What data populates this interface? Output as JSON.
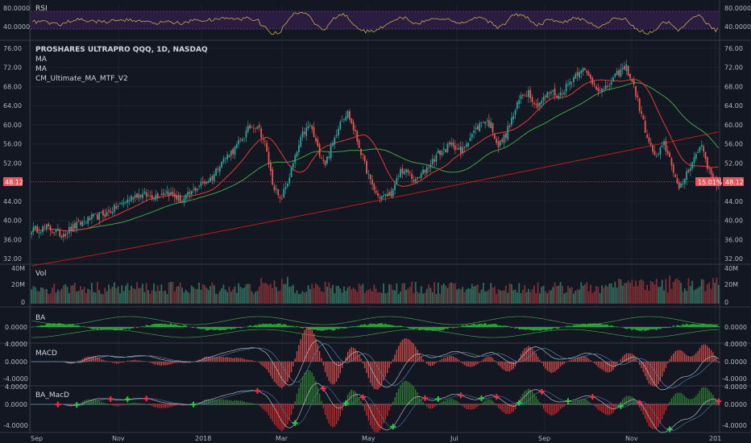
{
  "chart_data": {
    "type": "candlestick",
    "symbol_line": "PROSHARES ULTRAPRO QQQ, 1D, NASDAQ",
    "overlay_labels": [
      "MA",
      "MA",
      "CM_Ultimate_MA_MTF_V2"
    ],
    "last_price_label": "48.12",
    "change_badge": "15.01%",
    "price_axis": {
      "ticks": [
        "76.00",
        "72.00",
        "68.00",
        "64.00",
        "60.00",
        "56.00",
        "52.00",
        "48.00",
        "44.00",
        "40.00",
        "36.00",
        "32.00"
      ],
      "ylim": [
        31,
        77
      ]
    },
    "x_axis_labels": [
      "Sep",
      "Nov",
      "2018",
      "Mar",
      "May",
      "Jul",
      "Sep",
      "Nov",
      "201"
    ],
    "price_anchors": [
      [
        0,
        38
      ],
      [
        8,
        38.5
      ],
      [
        16,
        37
      ],
      [
        24,
        39
      ],
      [
        32,
        40.5
      ],
      [
        40,
        41.5
      ],
      [
        48,
        43.5
      ],
      [
        56,
        45.5
      ],
      [
        64,
        45
      ],
      [
        72,
        46
      ],
      [
        80,
        44
      ],
      [
        88,
        47
      ],
      [
        96,
        49
      ],
      [
        100,
        52
      ],
      [
        108,
        55
      ],
      [
        116,
        59.5
      ],
      [
        120,
        60
      ],
      [
        124,
        56
      ],
      [
        128,
        48
      ],
      [
        132,
        44
      ],
      [
        136,
        48
      ],
      [
        140,
        53
      ],
      [
        144,
        58
      ],
      [
        148,
        60
      ],
      [
        152,
        55
      ],
      [
        156,
        52
      ],
      [
        160,
        56
      ],
      [
        164,
        61
      ],
      [
        168,
        62.5
      ],
      [
        172,
        58
      ],
      [
        176,
        53
      ],
      [
        180,
        48
      ],
      [
        184,
        45
      ],
      [
        188,
        45
      ],
      [
        192,
        46
      ],
      [
        196,
        50.5
      ],
      [
        200,
        50
      ],
      [
        204,
        48
      ],
      [
        208,
        50
      ],
      [
        212,
        52
      ],
      [
        216,
        54
      ],
      [
        220,
        55
      ],
      [
        224,
        56
      ],
      [
        228,
        54
      ],
      [
        232,
        57
      ],
      [
        236,
        59
      ],
      [
        240,
        61
      ],
      [
        244,
        60
      ],
      [
        248,
        55.5
      ],
      [
        252,
        58
      ],
      [
        256,
        62
      ],
      [
        260,
        66
      ],
      [
        264,
        67
      ],
      [
        268,
        64
      ],
      [
        272,
        65.5
      ],
      [
        276,
        67
      ],
      [
        280,
        66
      ],
      [
        284,
        68
      ],
      [
        288,
        70
      ],
      [
        292,
        72
      ],
      [
        296,
        70
      ],
      [
        300,
        68
      ],
      [
        304,
        67
      ],
      [
        308,
        69
      ],
      [
        312,
        71
      ],
      [
        316,
        72
      ],
      [
        320,
        68
      ],
      [
        324,
        62
      ],
      [
        328,
        56
      ],
      [
        332,
        53
      ],
      [
        336,
        56
      ],
      [
        340,
        52
      ],
      [
        344,
        46
      ],
      [
        348,
        50
      ],
      [
        352,
        53
      ],
      [
        356,
        56
      ],
      [
        360,
        50
      ],
      [
        364,
        48
      ]
    ],
    "rsi": {
      "label": "RSI",
      "ticks": [
        "80.0000",
        "40.0000"
      ],
      "band": [
        40,
        80
      ]
    },
    "volume": {
      "label": "Vol",
      "ticks": [
        "40M",
        "20M",
        "0"
      ]
    },
    "ba": {
      "label": "BA",
      "ticks": [
        "0.0000"
      ]
    },
    "macd": {
      "label": "MACD",
      "ticks": [
        "4.0000",
        "0.0000",
        "-4.0000"
      ]
    },
    "ba_macd": {
      "label": "BA_MacD",
      "ticks": [
        "4.0000",
        "0.0000",
        "-4.0000"
      ]
    },
    "colors": {
      "up": "#26a69a",
      "down": "#ef5350",
      "ma_fast": "#e53935",
      "ma_mid": "#43a047",
      "ma_slow": "#b71c1c",
      "rsi_line": "#c9a94b",
      "rsi_band": "#2b1d40",
      "badge": "#e8565d"
    }
  }
}
